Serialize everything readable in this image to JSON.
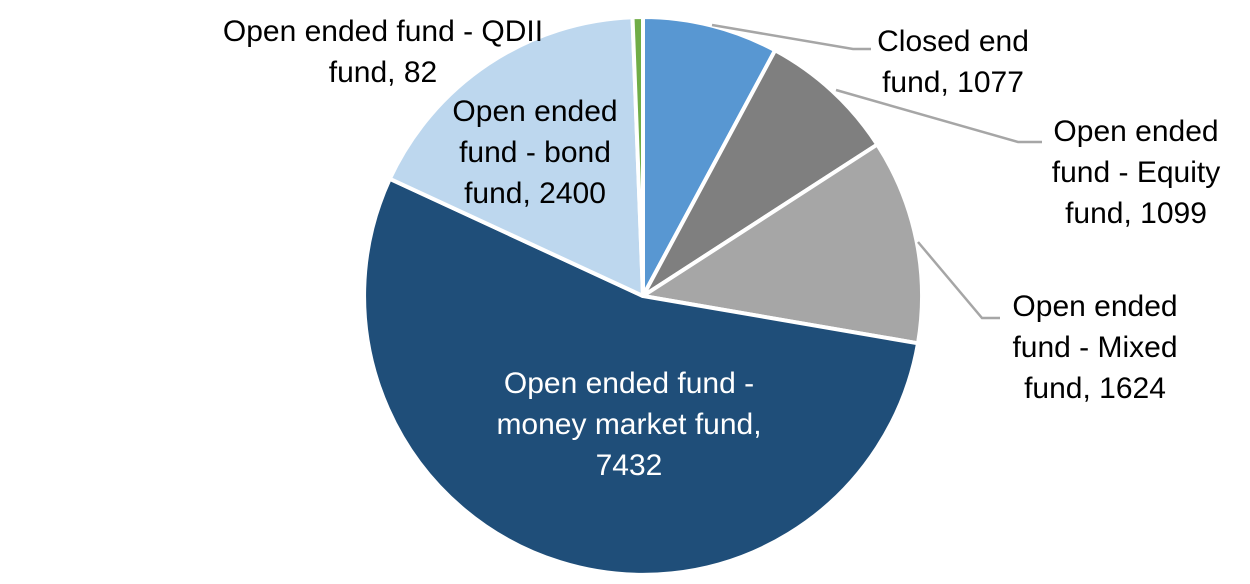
{
  "chart_data": {
    "type": "pie",
    "title": "",
    "start_angle_deg": 0,
    "direction": "clockwise",
    "total": 13714,
    "legend_position": "none",
    "data_labels": "category name, value",
    "slices": [
      {
        "key": "closed-end-fund",
        "label": "Closed end fund",
        "value": 1077,
        "color": "#5897D2"
      },
      {
        "key": "open-ended-equity-fund",
        "label": "Open ended fund - Equity fund",
        "value": 1099,
        "color": "#7F7F7F"
      },
      {
        "key": "open-ended-mixed-fund",
        "label": "Open ended fund - Mixed fund",
        "value": 1624,
        "color": "#A6A6A6"
      },
      {
        "key": "open-ended-money-market-fund",
        "label": "Open ended fund - money market fund",
        "value": 7432,
        "color": "#1F4E79"
      },
      {
        "key": "open-ended-bond-fund",
        "label": "Open ended fund - bond fund",
        "value": 2400,
        "color": "#BDD7EE"
      },
      {
        "key": "open-ended-qdii-fund",
        "label": "Open ended fund - QDII fund",
        "value": 82,
        "color": "#70AD47"
      }
    ]
  },
  "callouts": {
    "qdii": "Open ended fund - QDII\nfund, 82",
    "bond": "Open ended\nfund - bond\nfund, 2400",
    "closed_end": "Closed end\nfund, 1077",
    "equity": "Open ended\nfund - Equity\nfund, 1099",
    "mixed": "Open ended\nfund - Mixed\nfund, 1624",
    "money_market": "Open ended fund -\nmoney market fund,\n7432"
  },
  "style": {
    "background": "#FFFFFF",
    "slice_border_color": "#FFFFFF",
    "leader_line_color": "#A6A6A6",
    "label_text_color": "#000000",
    "inside_label_text_color": "#FFFFFF"
  }
}
